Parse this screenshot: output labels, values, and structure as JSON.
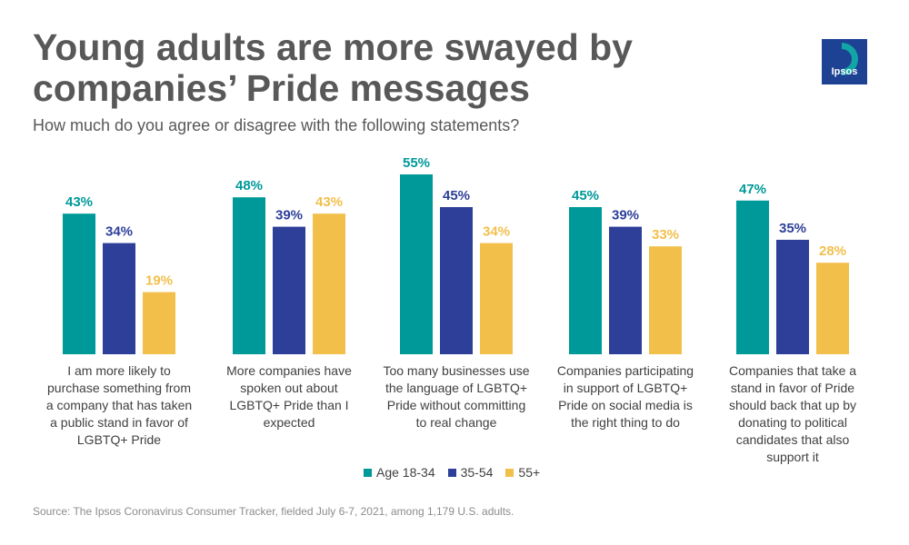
{
  "header": {
    "title": "Young adults are more swayed by companies’ Pride messages",
    "subtitle": "How much do you agree or disagree with the following statements?",
    "logo_text": "Ipsos"
  },
  "colors": {
    "title": "#585858",
    "teal": "#009999",
    "navy": "#2E3F9A",
    "gold": "#F2BF4B",
    "logo": "#1D4294"
  },
  "chart_data": {
    "type": "bar",
    "categories": [
      [
        "I am more likely to",
        "purchase something from",
        "a company that has taken",
        "a public stand in favor of",
        "LGBTQ+ Pride"
      ],
      [
        "More companies have",
        "spoken out about",
        "LGBTQ+ Pride than I",
        "expected"
      ],
      [
        "Too many businesses use",
        "the language of LGBTQ+",
        "Pride without committing",
        "to real change"
      ],
      [
        "Companies participating",
        "in support of LGBTQ+",
        "Pride on social media is",
        "the right thing to do"
      ],
      [
        "Companies that take a",
        "stand in favor of Pride",
        "should back that up by",
        "donating to political",
        "candidates that also",
        "support it"
      ]
    ],
    "series": [
      {
        "name": "Age 18-34",
        "color": "#009999",
        "values": [
          43,
          48,
          55,
          45,
          47
        ],
        "labels": [
          "43%",
          "48%",
          "55%",
          "45%",
          "47%"
        ]
      },
      {
        "name": "35-54",
        "color": "#2E3F9A",
        "values": [
          34,
          39,
          45,
          39,
          35
        ],
        "labels": [
          "34%",
          "39%",
          "45%",
          "39%",
          "35%"
        ]
      },
      {
        "name": "55+",
        "color": "#F2BF4B",
        "values": [
          19,
          43,
          34,
          33,
          28
        ],
        "labels": [
          "19%",
          "43%",
          "34%",
          "33%",
          "28%"
        ]
      }
    ],
    "ylim": [
      0,
      55
    ],
    "legend_position": "bottom-center",
    "grid": false
  },
  "footer": {
    "source": "Source: The Ipsos Coronavirus Consumer Tracker, fielded July 6-7, 2021, among 1,179 U.S. adults."
  }
}
